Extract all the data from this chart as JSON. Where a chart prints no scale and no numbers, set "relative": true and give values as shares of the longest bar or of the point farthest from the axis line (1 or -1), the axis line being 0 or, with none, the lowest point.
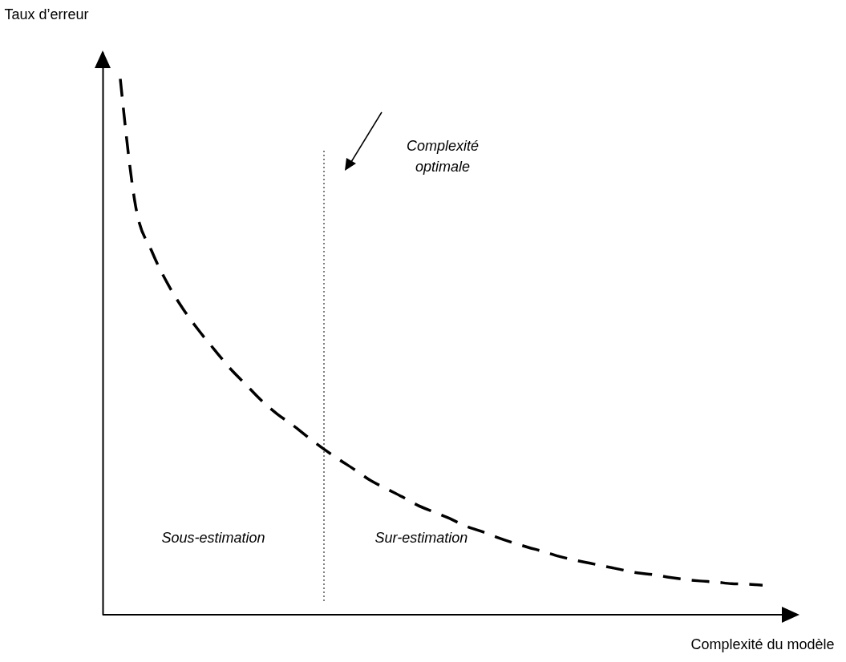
{
  "chart_data": {
    "type": "line",
    "relative": true,
    "xlabel": "Complexité du modèle",
    "ylabel": "Taux d’erreur",
    "line_style": "dashed",
    "categories": [
      null,
      null,
      null,
      null,
      null,
      null,
      null,
      null,
      null,
      null,
      null,
      null,
      null,
      null,
      null,
      null,
      null,
      null,
      null,
      null,
      null,
      null,
      null,
      null,
      null,
      null,
      null,
      null,
      null,
      null,
      null,
      null,
      null,
      null,
      null,
      null,
      null,
      null,
      null,
      null,
      null,
      null
    ],
    "series": [
      {
        "color": "#000000",
        "values": [
          1.0,
          0.759,
          0.679,
          0.619,
          0.571,
          0.531,
          0.495,
          0.46,
          0.43,
          0.4,
          0.375,
          0.354,
          0.331,
          0.309,
          0.289,
          0.27,
          0.25,
          0.235,
          0.22,
          0.204,
          0.192,
          0.18,
          0.166,
          0.156,
          0.145,
          0.135,
          0.126,
          0.118,
          0.109,
          0.102,
          0.096,
          0.09,
          0.084,
          0.078,
          0.075,
          0.07,
          0.066,
          0.063,
          0.061,
          0.058,
          0.057,
          0.055
        ]
      }
    ],
    "annotations": [
      "Complexité optimale",
      "Sous-estimation",
      "Sur-estimation"
    ]
  }
}
